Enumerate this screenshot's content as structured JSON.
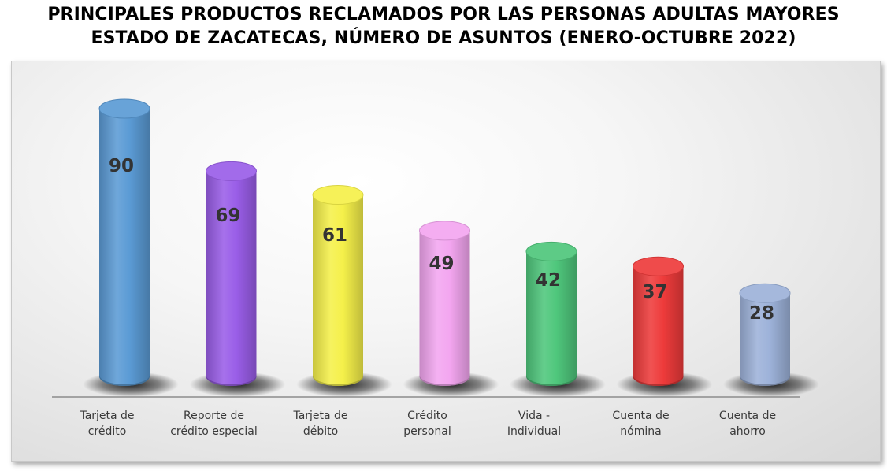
{
  "title_line1": "PRINCIPALES PRODUCTOS RECLAMADOS POR LAS PERSONAS ADULTAS MAYORES",
  "title_line2": "ESTADO DE ZACATECAS, NÚMERO DE ASUNTOS (ENERO-OCTUBRE 2022)",
  "chart_data": {
    "type": "bar",
    "title": "PRINCIPALES PRODUCTOS RECLAMADOS POR LAS PERSONAS ADULTAS MAYORES ESTADO DE ZACATECAS, NÚMERO DE ASUNTOS (ENERO-OCTUBRE 2022)",
    "categories": [
      "Tarjeta de crédito",
      "Reporte de crédito especial",
      "Tarjeta de débito",
      "Crédito personal",
      "Vida - Individual",
      "Cuenta de nómina",
      "Cuenta de ahorro"
    ],
    "category_lines": [
      [
        "Tarjeta de",
        "crédito"
      ],
      [
        "Reporte de",
        "crédito especial"
      ],
      [
        "Tarjeta de",
        "débito"
      ],
      [
        "Crédito",
        "personal"
      ],
      [
        "Vida -",
        "Individual"
      ],
      [
        "Cuenta de",
        "nómina"
      ],
      [
        "Cuenta de",
        "ahorro"
      ]
    ],
    "values": [
      90,
      69,
      61,
      49,
      42,
      37,
      28
    ],
    "colors": [
      "#5b9bd5",
      "#9a5ee8",
      "#f5f04a",
      "#f3a6f0",
      "#4fc77c",
      "#ee3b3b",
      "#9db2d9"
    ],
    "xlabel": "",
    "ylabel": "",
    "ylim": [
      0,
      90
    ],
    "grid": false,
    "legend": "none",
    "data_labels": true
  }
}
